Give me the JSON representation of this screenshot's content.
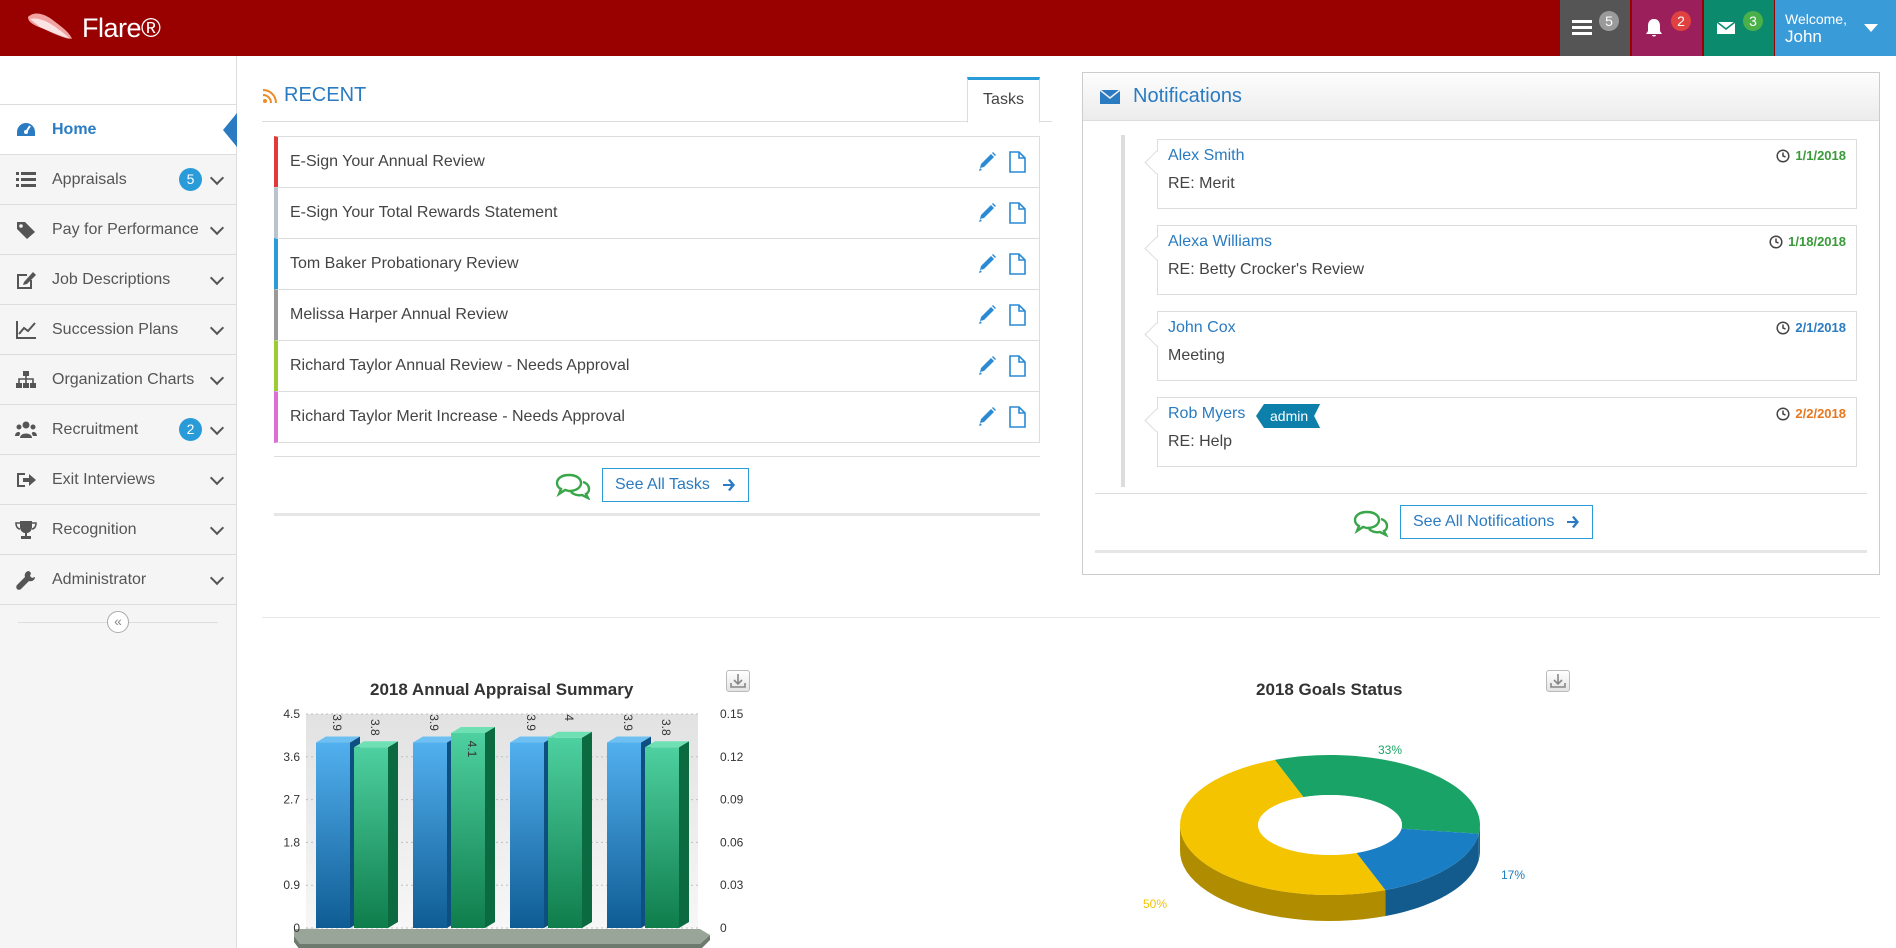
{
  "app": {
    "brand": "Flare®"
  },
  "topbar": {
    "tasks_count": "5",
    "alerts_count": "2",
    "messages_count": "3",
    "welcome": "Welcome,",
    "user_name": "John"
  },
  "sidebar": {
    "items": [
      {
        "label": "Home",
        "icon": "dashboard-icon"
      },
      {
        "label": "Appraisals",
        "icon": "list-icon",
        "badge": "5"
      },
      {
        "label": "Pay for Performance",
        "icon": "tag-icon"
      },
      {
        "label": "Job Descriptions",
        "icon": "edit-icon"
      },
      {
        "label": "Succession Plans",
        "icon": "line-chart-icon"
      },
      {
        "label": "Organization Charts",
        "icon": "sitemap-icon"
      },
      {
        "label": "Recruitment",
        "icon": "users-icon",
        "badge": "2"
      },
      {
        "label": "Exit Interviews",
        "icon": "sign-out-icon"
      },
      {
        "label": "Recognition",
        "icon": "trophy-icon"
      },
      {
        "label": "Administrator",
        "icon": "wrench-icon"
      }
    ],
    "collapse_glyph": "«"
  },
  "recent": {
    "title": "RECENT",
    "tab": "Tasks",
    "tasks": [
      {
        "label": "E-Sign Your Annual Review",
        "color": "#e03a3a"
      },
      {
        "label": "E-Sign Your Total Rewards Statement",
        "color": "#b8c4cc"
      },
      {
        "label": "Tom Baker Probationary Review",
        "color": "#2a9bd9"
      },
      {
        "label": "Melissa Harper Annual Review",
        "color": "#9a9a9a"
      },
      {
        "label": "Richard Taylor Annual Review - Needs Approval",
        "color": "#9acd32"
      },
      {
        "label": "Richard Taylor Merit Increase - Needs Approval",
        "color": "#da70d6"
      }
    ],
    "see_all": "See All Tasks"
  },
  "notifications": {
    "title": "Notifications",
    "items": [
      {
        "name": "Alex Smith",
        "subject": "RE: Merit",
        "date": "1/1/2018",
        "date_color": "#3a9a3a"
      },
      {
        "name": "Alexa Williams",
        "subject": "RE: Betty Crocker's Review",
        "date": "1/18/2018",
        "date_color": "#3a9a3a"
      },
      {
        "name": "John Cox",
        "subject": "Meeting",
        "date": "2/1/2018",
        "date_color": "#2a7bc1"
      },
      {
        "name": "Rob Myers",
        "tag": "admin",
        "subject": "RE: Help",
        "date": "2/2/2018",
        "date_color": "#e8771d"
      }
    ],
    "see_all": "See All Notifications"
  },
  "chart_data": [
    {
      "type": "bar",
      "title": "2018 Annual Appraisal Summary",
      "categories": [
        "",
        "",
        "",
        ""
      ],
      "series": [
        {
          "values": [
            3.9,
            3.9,
            3.9,
            3.9
          ],
          "color": "#3a8fd0"
        },
        {
          "values": [
            3.8,
            4.1,
            4.0,
            3.8
          ],
          "color": "#2aa06e"
        }
      ],
      "y_ticks_left": [
        "0",
        "0.9",
        "1.8",
        "2.7",
        "3.6",
        "4.5"
      ],
      "y_ticks_right": [
        "0",
        "0.03",
        "0.06",
        "0.09",
        "0.12",
        "0.15"
      ],
      "ylim": [
        0,
        4.5
      ],
      "grid": true,
      "three_d": true
    },
    {
      "type": "pie",
      "title": "2018 Goals Status",
      "donut": true,
      "three_d": true,
      "slices": [
        {
          "label": "33%",
          "value": 33,
          "color": "#1aa366"
        },
        {
          "label": "17%",
          "value": 17,
          "color": "#1a7ec4"
        },
        {
          "label": "50%",
          "value": 50,
          "color": "#f5c400"
        }
      ]
    }
  ]
}
